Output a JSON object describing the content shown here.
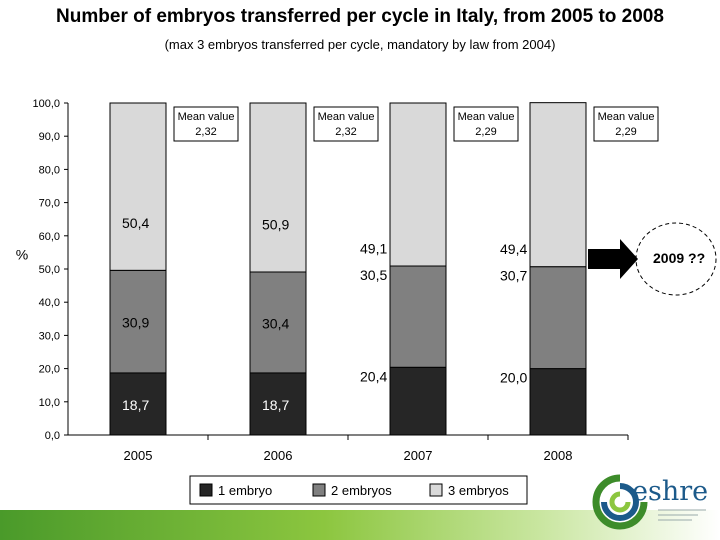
{
  "header": {
    "title": "Number of embryos transferred per cycle in Italy, from 2005 to 2008",
    "subtitle": "(max 3 embryos transferred per cycle, mandatory by law from 2004)"
  },
  "chart_data": {
    "type": "bar",
    "stacked": true,
    "categories": [
      "2005",
      "2006",
      "2007",
      "2008"
    ],
    "series": [
      {
        "name": "1 embryo",
        "values": [
          18.7,
          18.7,
          20.4,
          20.0
        ],
        "labels": [
          "18,7",
          "18,7",
          "20,4",
          "20,0"
        ],
        "color": "#262626"
      },
      {
        "name": "2 embryos",
        "values": [
          30.9,
          30.4,
          30.5,
          30.7
        ],
        "labels": [
          "30,9",
          "30,4",
          "30,5",
          "30,7"
        ],
        "color": "#808080"
      },
      {
        "name": "3 embryos",
        "values": [
          50.4,
          50.9,
          49.1,
          49.4
        ],
        "labels": [
          "50,4",
          "50,9",
          "49,1",
          "49,4"
        ],
        "color": "#d9d9d9"
      }
    ],
    "ylabel": "%",
    "ylim": [
      0,
      100
    ],
    "yticks": [
      "0,0",
      "10,0",
      "20,0",
      "30,0",
      "40,0",
      "50,0",
      "60,0",
      "70,0",
      "80,0",
      "90,0",
      "100,0"
    ],
    "annotations": [
      {
        "line1": "Mean value",
        "line2": "2,32"
      },
      {
        "line1": "Mean value",
        "line2": "2,32"
      },
      {
        "line1": "Mean value",
        "line2": "2,29"
      },
      {
        "line1": "Mean value",
        "line2": "2,29"
      }
    ],
    "legend_position": "bottom",
    "grid": false,
    "future_label": "2009 ??"
  },
  "logo": {
    "text": "eshre"
  }
}
